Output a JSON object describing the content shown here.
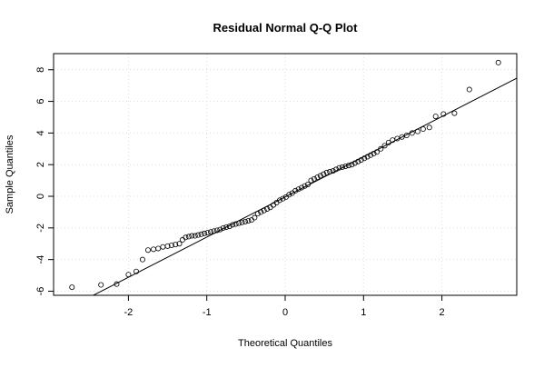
{
  "chart_data": {
    "type": "scatter",
    "title": "Residual Normal Q-Q Plot",
    "x_label": "Theoretical Quantiles",
    "y_label": "Sample Quantiles",
    "x": [
      -2.72,
      -2.35,
      -2.15,
      -2.0,
      -1.9,
      -1.82,
      -1.75,
      -1.68,
      -1.62,
      -1.56,
      -1.5,
      -1.45,
      -1.4,
      -1.35,
      -1.31,
      -1.27,
      -1.23,
      -1.19,
      -1.15,
      -1.11,
      -1.07,
      -1.03,
      -0.99,
      -0.95,
      -0.91,
      -0.87,
      -0.83,
      -0.79,
      -0.75,
      -0.71,
      -0.67,
      -0.63,
      -0.59,
      -0.55,
      -0.51,
      -0.47,
      -0.43,
      -0.39,
      -0.35,
      -0.31,
      -0.27,
      -0.23,
      -0.19,
      -0.15,
      -0.11,
      -0.07,
      -0.03,
      0.01,
      0.05,
      0.09,
      0.13,
      0.17,
      0.21,
      0.25,
      0.29,
      0.33,
      0.37,
      0.41,
      0.45,
      0.49,
      0.53,
      0.57,
      0.61,
      0.65,
      0.69,
      0.73,
      0.77,
      0.81,
      0.85,
      0.89,
      0.93,
      0.97,
      1.01,
      1.05,
      1.09,
      1.13,
      1.17,
      1.22,
      1.27,
      1.32,
      1.37,
      1.43,
      1.49,
      1.55,
      1.62,
      1.69,
      1.76,
      1.84,
      1.92,
      2.02,
      2.16,
      2.35,
      2.72
    ],
    "series": [
      {
        "color": "#000000",
        "values": [
          -5.75,
          -5.6,
          -5.55,
          -4.95,
          -4.75,
          -4.0,
          -3.4,
          -3.35,
          -3.3,
          -3.2,
          -3.15,
          -3.1,
          -3.05,
          -3.0,
          -2.75,
          -2.6,
          -2.55,
          -2.5,
          -2.5,
          -2.45,
          -2.4,
          -2.35,
          -2.3,
          -2.25,
          -2.2,
          -2.15,
          -2.1,
          -2.0,
          -1.95,
          -1.9,
          -1.8,
          -1.75,
          -1.7,
          -1.65,
          -1.6,
          -1.55,
          -1.5,
          -1.35,
          -1.1,
          -1.0,
          -0.9,
          -0.8,
          -0.7,
          -0.55,
          -0.4,
          -0.25,
          -0.15,
          -0.05,
          0.1,
          0.2,
          0.35,
          0.45,
          0.55,
          0.65,
          0.75,
          1.0,
          1.1,
          1.2,
          1.3,
          1.4,
          1.5,
          1.55,
          1.6,
          1.7,
          1.8,
          1.85,
          1.9,
          1.95,
          2.0,
          2.1,
          2.2,
          2.3,
          2.4,
          2.5,
          2.6,
          2.7,
          2.8,
          3.0,
          3.2,
          3.4,
          3.55,
          3.65,
          3.75,
          3.85,
          4.0,
          4.1,
          4.25,
          4.35,
          5.05,
          5.2,
          5.25,
          6.75,
          8.45
        ]
      }
    ],
    "reference_line": {
      "intercept": -0.04,
      "slope": 2.54
    },
    "xlim": [
      -2.955,
      2.955
    ],
    "ylim": [
      -6.26,
      9.02
    ],
    "xticks": [
      -2,
      -1,
      0,
      1,
      2
    ],
    "yticks": [
      -6,
      -4,
      -2,
      0,
      2,
      4,
      6,
      8
    ],
    "grid": true
  }
}
